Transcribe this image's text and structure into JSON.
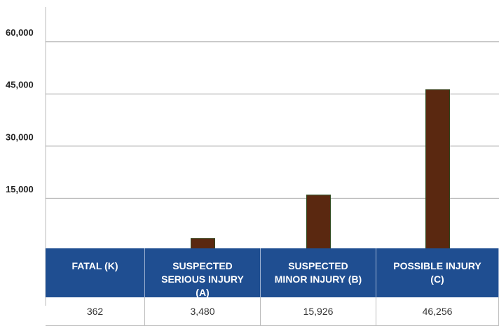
{
  "chart_data": {
    "type": "bar",
    "categories": [
      "FATAL (K)",
      "SUSPECTED SERIOUS INJURY (A)",
      "SUSPECTED MINOR INJURY (B)",
      "POSSIBLE INJURY (C)"
    ],
    "values": [
      362,
      3480,
      15926,
      46256
    ],
    "value_labels": [
      "362",
      "3,480",
      "15,926",
      "46,256"
    ],
    "color": "#5a2810",
    "edgecolor": "#2f4a1f",
    "ylim": [
      0,
      70000
    ],
    "yticks": [
      {
        "value": 15000,
        "label": "15,000"
      },
      {
        "value": 30000,
        "label": "30,000"
      },
      {
        "value": 45000,
        "label": "45,000"
      },
      {
        "value": 60000,
        "label": "60,000"
      }
    ],
    "grid": true
  }
}
